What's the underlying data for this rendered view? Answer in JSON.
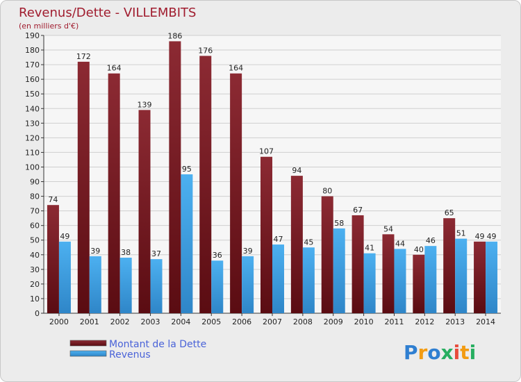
{
  "chart_data": {
    "type": "bar",
    "title": "Revenus/Dette - VILLEMBITS",
    "subtitle": "(en milliers d'€)",
    "categories": [
      "2000",
      "2001",
      "2002",
      "2003",
      "2004",
      "2005",
      "2006",
      "2007",
      "2008",
      "2009",
      "2010",
      "2011",
      "2012",
      "2013",
      "2014"
    ],
    "series": [
      {
        "name": "Montant de la Dette",
        "color": "#7a1a22",
        "values": [
          74,
          172,
          164,
          139,
          186,
          176,
          164,
          107,
          94,
          80,
          67,
          54,
          40,
          65,
          49
        ]
      },
      {
        "name": "Revenus",
        "color": "#3a9ee0",
        "values": [
          49,
          39,
          38,
          37,
          95,
          36,
          39,
          47,
          45,
          58,
          41,
          44,
          46,
          51,
          49
        ]
      }
    ],
    "ylim": [
      0,
      190
    ],
    "ytick_step": 10,
    "grid": true,
    "legend": "bottom-left"
  },
  "logo": {
    "text": "Proxiti",
    "letters": [
      "P",
      "r",
      "o",
      "x",
      "i",
      "t",
      "i"
    ],
    "colors": [
      "#2f7fd1",
      "#f39c12",
      "#2f7fd1",
      "#27ae60",
      "#e74c3c",
      "#f39c12",
      "#27ae60"
    ]
  }
}
